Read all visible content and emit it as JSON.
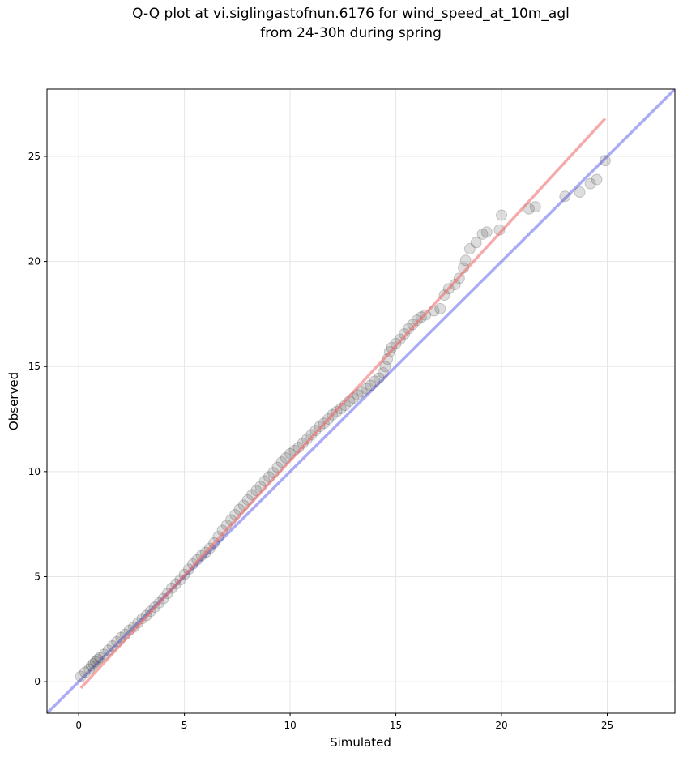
{
  "chart_data": {
    "type": "scatter",
    "title": "Q-Q plot at vi.siglingastofnun.6176 for wind_speed_at_10m_agl",
    "subtitle": "from 24-30h during spring",
    "xlabel": "Simulated",
    "ylabel": "Observed",
    "xlim": [
      -1.5,
      28.2
    ],
    "ylim": [
      -1.5,
      28.2
    ],
    "xticks": [
      "0",
      "5",
      "10",
      "15",
      "20",
      "25"
    ],
    "yticks": [
      "0",
      "5",
      "10",
      "15",
      "20",
      "25"
    ],
    "grid": true,
    "points": [
      [
        0.1,
        0.25
      ],
      [
        0.3,
        0.45
      ],
      [
        0.5,
        0.6
      ],
      [
        0.6,
        0.75
      ],
      [
        0.7,
        0.85
      ],
      [
        0.8,
        0.95
      ],
      [
        0.9,
        1.05
      ],
      [
        1.0,
        1.15
      ],
      [
        1.2,
        1.3
      ],
      [
        1.4,
        1.5
      ],
      [
        1.6,
        1.7
      ],
      [
        1.8,
        1.9
      ],
      [
        2.0,
        2.1
      ],
      [
        2.2,
        2.25
      ],
      [
        2.4,
        2.45
      ],
      [
        2.6,
        2.6
      ],
      [
        2.8,
        2.8
      ],
      [
        3.0,
        3.0
      ],
      [
        3.2,
        3.15
      ],
      [
        3.4,
        3.35
      ],
      [
        3.6,
        3.55
      ],
      [
        3.8,
        3.75
      ],
      [
        4.0,
        3.95
      ],
      [
        4.2,
        4.2
      ],
      [
        4.4,
        4.45
      ],
      [
        4.6,
        4.65
      ],
      [
        4.8,
        4.85
      ],
      [
        5.0,
        5.1
      ],
      [
        5.2,
        5.35
      ],
      [
        5.4,
        5.6
      ],
      [
        5.6,
        5.8
      ],
      [
        5.8,
        6.0
      ],
      [
        6.0,
        6.15
      ],
      [
        6.2,
        6.35
      ],
      [
        6.4,
        6.6
      ],
      [
        6.6,
        6.9
      ],
      [
        6.8,
        7.2
      ],
      [
        7.0,
        7.45
      ],
      [
        7.2,
        7.7
      ],
      [
        7.4,
        7.95
      ],
      [
        7.6,
        8.2
      ],
      [
        7.8,
        8.4
      ],
      [
        8.0,
        8.65
      ],
      [
        8.2,
        8.9
      ],
      [
        8.4,
        9.1
      ],
      [
        8.6,
        9.3
      ],
      [
        8.8,
        9.55
      ],
      [
        9.0,
        9.75
      ],
      [
        9.2,
        9.95
      ],
      [
        9.4,
        10.2
      ],
      [
        9.6,
        10.45
      ],
      [
        9.8,
        10.65
      ],
      [
        10.0,
        10.85
      ],
      [
        10.2,
        11.0
      ],
      [
        10.4,
        11.15
      ],
      [
        10.6,
        11.35
      ],
      [
        10.8,
        11.55
      ],
      [
        11.0,
        11.75
      ],
      [
        11.2,
        11.95
      ],
      [
        11.4,
        12.15
      ],
      [
        11.6,
        12.3
      ],
      [
        11.8,
        12.5
      ],
      [
        12.0,
        12.7
      ],
      [
        12.2,
        12.85
      ],
      [
        12.4,
        13.0
      ],
      [
        12.6,
        13.15
      ],
      [
        12.8,
        13.35
      ],
      [
        13.0,
        13.5
      ],
      [
        13.2,
        13.65
      ],
      [
        13.4,
        13.8
      ],
      [
        13.6,
        13.95
      ],
      [
        13.8,
        14.1
      ],
      [
        14.0,
        14.3
      ],
      [
        14.2,
        14.45
      ],
      [
        14.4,
        14.7
      ],
      [
        14.5,
        15.0
      ],
      [
        14.6,
        15.35
      ],
      [
        14.7,
        15.7
      ],
      [
        14.8,
        15.9
      ],
      [
        15.0,
        16.1
      ],
      [
        15.2,
        16.3
      ],
      [
        15.4,
        16.55
      ],
      [
        15.6,
        16.8
      ],
      [
        15.8,
        17.0
      ],
      [
        16.0,
        17.2
      ],
      [
        16.2,
        17.35
      ],
      [
        16.4,
        17.45
      ],
      [
        16.8,
        17.65
      ],
      [
        17.1,
        17.75
      ],
      [
        17.3,
        18.4
      ],
      [
        17.5,
        18.7
      ],
      [
        17.8,
        18.9
      ],
      [
        18.0,
        19.2
      ],
      [
        18.2,
        19.7
      ],
      [
        18.3,
        20.05
      ],
      [
        18.5,
        20.6
      ],
      [
        18.8,
        20.9
      ],
      [
        19.1,
        21.3
      ],
      [
        19.3,
        21.4
      ],
      [
        19.9,
        21.5
      ],
      [
        20.0,
        22.2
      ],
      [
        21.3,
        22.5
      ],
      [
        21.6,
        22.6
      ],
      [
        23.0,
        23.1
      ],
      [
        23.7,
        23.3
      ],
      [
        24.2,
        23.7
      ],
      [
        24.5,
        23.9
      ],
      [
        24.9,
        24.8
      ]
    ],
    "reference_line": {
      "type": "y=x",
      "color": "#6666ee"
    },
    "fit_line": {
      "x": [
        0.1,
        24.9
      ],
      "y": [
        -0.3,
        26.8
      ],
      "color": "#ee6666"
    },
    "point_color": "#404040"
  }
}
